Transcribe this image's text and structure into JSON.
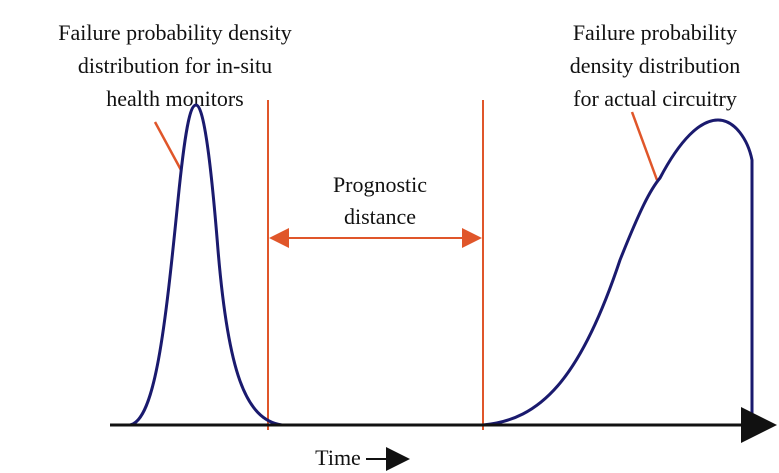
{
  "left_label": {
    "lines": [
      "Failure probability density",
      "distribution for in-situ",
      "health monitors"
    ]
  },
  "right_label": {
    "lines": [
      "Failure probability",
      "density distribution",
      "for actual circuitry"
    ]
  },
  "distance_label": {
    "lines": [
      "Prognostic",
      "distance"
    ]
  },
  "axis_label": "Time"
}
